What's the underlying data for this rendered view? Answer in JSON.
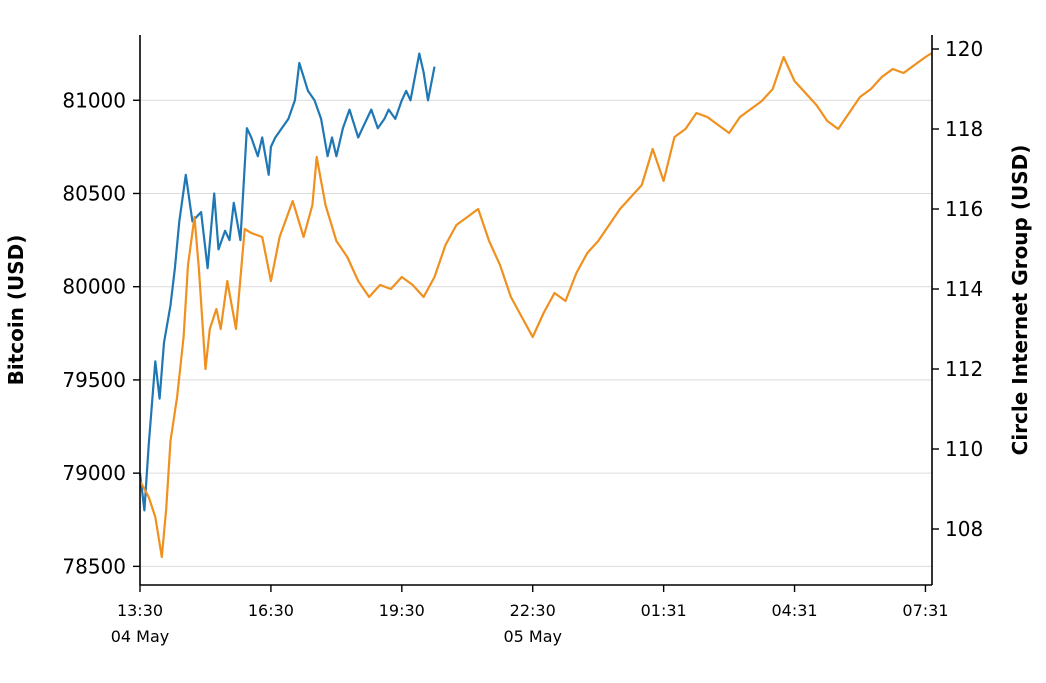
{
  "chart_data": {
    "type": "line",
    "title": "",
    "xlabel": "",
    "left_ylabel": "Bitcoin (USD)",
    "right_ylabel": "Circle Internet Group (USD)",
    "x_tick_labels": [
      "13:30",
      "16:30",
      "19:30",
      "22:30",
      "01:31",
      "04:31",
      "07:31"
    ],
    "x_date_labels": [
      {
        "label": "04 May",
        "at": "13:30"
      },
      {
        "label": "05 May",
        "at": "22:30"
      }
    ],
    "x_range_hours": [
      0,
      18.15
    ],
    "left_yticks": [
      78500,
      79000,
      79500,
      80000,
      80500,
      81000
    ],
    "right_yticks": [
      108,
      110,
      112,
      114,
      116,
      118,
      120
    ],
    "left_ylim": [
      78400,
      81350
    ],
    "right_ylim": [
      106.6,
      120.35
    ],
    "grid": "horizontal, left axis",
    "legend": "none",
    "series": [
      {
        "axis": "left",
        "color": "#1f77b4",
        "x_hours": [
          0,
          0.1,
          0.2,
          0.35,
          0.45,
          0.55,
          0.7,
          0.8,
          0.9,
          1.05,
          1.2,
          1.4,
          1.55,
          1.7,
          1.8,
          1.95,
          2.05,
          2.15,
          2.3,
          2.45,
          2.55,
          2.7,
          2.8,
          2.95,
          3.0,
          3.1,
          3.25,
          3.4,
          3.55,
          3.65,
          3.85,
          4.0,
          4.15,
          4.3,
          4.4,
          4.5,
          4.65,
          4.8,
          5.0,
          5.1,
          5.2,
          5.3,
          5.45,
          5.6,
          5.7,
          5.85,
          6.0,
          6.1,
          6.2,
          6.4,
          6.5,
          6.6,
          6.75
        ],
        "values": [
          79000,
          78800,
          79150,
          79600,
          79400,
          79700,
          79900,
          80100,
          80350,
          80600,
          80350,
          80400,
          80100,
          80500,
          80200,
          80300,
          80250,
          80450,
          80250,
          80850,
          80800,
          80700,
          80800,
          80600,
          80750,
          80800,
          80850,
          80900,
          81000,
          81200,
          81050,
          81000,
          80900,
          80700,
          80800,
          80700,
          80850,
          80950,
          80800,
          80850,
          80900,
          80950,
          80850,
          80900,
          80950,
          80900,
          81000,
          81050,
          81000,
          81250,
          81150,
          81000,
          81180
        ]
      },
      {
        "axis": "right",
        "color": "#f0901e",
        "x_hours": [
          0,
          0.2,
          0.35,
          0.5,
          0.6,
          0.7,
          0.85,
          1.0,
          1.1,
          1.25,
          1.35,
          1.5,
          1.6,
          1.75,
          1.85,
          2.0,
          2.2,
          2.4,
          2.55,
          2.8,
          3.0,
          3.2,
          3.5,
          3.75,
          3.95,
          4.05,
          4.25,
          4.5,
          4.75,
          5.0,
          5.25,
          5.5,
          5.75,
          6.0,
          6.25,
          6.5,
          6.75,
          7.0,
          7.25,
          7.5,
          7.75,
          8.0,
          8.25,
          8.5,
          8.75,
          9.0,
          9.25,
          9.5,
          9.75,
          10.0,
          10.25,
          10.5,
          10.75,
          11.0,
          11.25,
          11.5,
          11.75,
          12.0,
          12.25,
          12.5,
          12.75,
          13.0,
          13.25,
          13.5,
          13.75,
          14.0,
          14.25,
          14.5,
          14.75,
          15.0,
          15.25,
          15.5,
          15.75,
          16.0,
          16.25,
          16.5,
          16.75,
          17.0,
          17.25,
          17.5,
          17.75,
          18.0,
          18.15
        ],
        "values": [
          109.2,
          108.8,
          108.3,
          107.3,
          108.5,
          110.2,
          111.3,
          112.8,
          114.6,
          115.8,
          114.5,
          112.0,
          113.0,
          113.5,
          113.0,
          114.2,
          113.0,
          115.5,
          115.4,
          115.3,
          114.2,
          115.3,
          116.2,
          115.3,
          116.1,
          117.3,
          116.1,
          115.2,
          114.8,
          114.2,
          113.8,
          114.1,
          114.0,
          114.3,
          114.1,
          113.8,
          114.3,
          115.1,
          115.6,
          115.8,
          116.0,
          115.2,
          114.6,
          113.8,
          113.3,
          112.8,
          113.4,
          113.9,
          113.7,
          114.4,
          114.9,
          115.2,
          115.6,
          116.0,
          116.3,
          116.6,
          117.5,
          116.7,
          117.8,
          118.0,
          118.4,
          118.3,
          118.1,
          117.9,
          118.3,
          118.5,
          118.7,
          119.0,
          119.8,
          119.2,
          118.9,
          118.6,
          118.2,
          118.0,
          118.4,
          118.8,
          119.0,
          119.3,
          119.5,
          119.4,
          119.6,
          119.8,
          119.9
        ]
      }
    ]
  }
}
